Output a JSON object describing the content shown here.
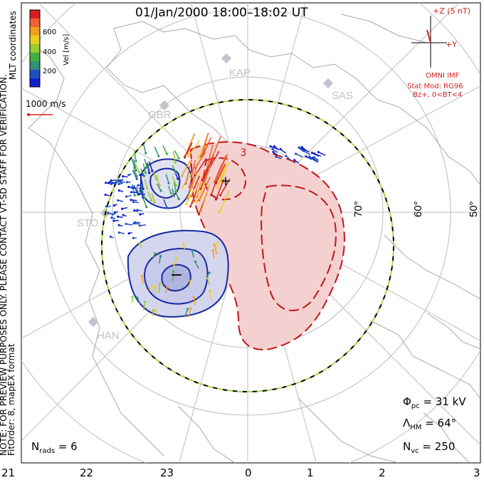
{
  "title": "01/Jan/2000 18:00–18:02 UT",
  "colorbar": {
    "label": "Vel [m/s]",
    "ticks": [
      "600",
      "400",
      "200"
    ],
    "colors": [
      "#d42020",
      "#f06030",
      "#f0a020",
      "#e8d020",
      "#98cc30",
      "#40b040",
      "#30907a",
      "#2050c0",
      "#1020c8"
    ]
  },
  "coords_label": "MLT coordinates",
  "scale_vector_label": "1000 m/s",
  "imf": {
    "z_label": "+Z (5 nT)",
    "y_label": "+Y",
    "source": "OMNI IMF",
    "stat_mod": "Stat Mod: RG96",
    "condition": "Bz+, 0<BT<4"
  },
  "stations": [
    "KAP",
    "GBR",
    "SAS",
    "STO",
    "HAN"
  ],
  "lat_labels": [
    "70°",
    "60°",
    "50°"
  ],
  "contour_marks": {
    "minus": "−",
    "plus": "+",
    "num": "3"
  },
  "note": "NOTE: FOR PREVIEW PURPOSES ONLY. PLEASE CONTACT VT-SD STAFF FOR VERIFICATION.",
  "fit_note": "FitOrder: 8, mapEX format",
  "stats": {
    "phi_pc_label": "Φ",
    "phi_pc_sub": "pc",
    "phi_pc_value": " = 31 kV",
    "lambda_label": "Λ",
    "lambda_sub": "HM",
    "lambda_value": " = 64°",
    "nvc_label": "N",
    "nvc_sub": "vc",
    "nvc_value": " = 250",
    "nrads_label": "N",
    "nrads_sub": "rads",
    "nrads_value": " = 6"
  },
  "mlt_ticks": [
    "21",
    "22",
    "23",
    "0",
    "1",
    "2",
    "3"
  ]
}
